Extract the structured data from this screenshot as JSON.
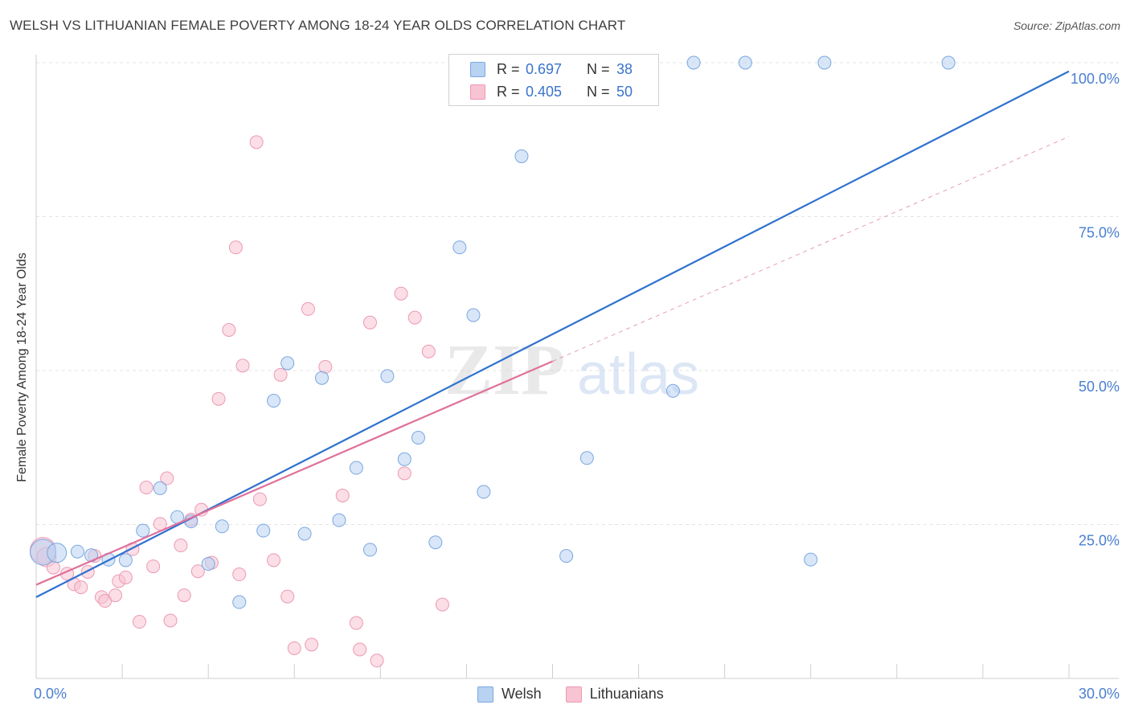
{
  "title": "WELSH VS LITHUANIAN FEMALE POVERTY AMONG 18-24 YEAR OLDS CORRELATION CHART",
  "source": "Source: ZipAtlas.com",
  "watermark": {
    "zip": "ZIP",
    "atlas": "atlas"
  },
  "colors": {
    "welsh_fill": "#b8d2f2",
    "welsh_stroke": "#7aa7e0",
    "welsh_line": "#2f72cf",
    "lith_fill": "#f8c3d2",
    "lith_stroke": "#ec9ab3",
    "lith_line": "#e0709a",
    "axis_text": "#4a7fd0",
    "grid": "#e3e3e3"
  },
  "legend_top": [
    {
      "r_label": "R =",
      "r_value": "0.697",
      "n_label": "N =",
      "n_value": "38"
    },
    {
      "r_label": "R =",
      "r_value": "0.405",
      "n_label": "N =",
      "n_value": "50"
    }
  ],
  "legend_bottom": [
    "Welsh",
    "Lithuanians"
  ],
  "chart_data": {
    "type": "scatter",
    "title": "WELSH VS LITHUANIAN FEMALE POVERTY AMONG 18-24 YEAR OLDS CORRELATION CHART",
    "xlabel": "",
    "ylabel": "Female Poverty Among 18-24 Year Olds",
    "xlim": [
      0,
      30
    ],
    "ylim": [
      0,
      100
    ],
    "x_tick_labels": [
      "0.0%",
      "30.0%"
    ],
    "y_tick_values": [
      25,
      50,
      75,
      100
    ],
    "y_tick_labels": [
      "25.0%",
      "50.0%",
      "75.0%",
      "100.0%"
    ],
    "grid": true,
    "legend_position": "top-center",
    "series": [
      {
        "name": "Welsh",
        "r": 0.697,
        "n": 38,
        "trend": {
          "x": [
            0,
            30
          ],
          "y": [
            13.2,
            98.6
          ],
          "style": "solid"
        },
        "points": [
          [
            0.2,
            20.5,
            2
          ],
          [
            0.6,
            20.4,
            1
          ],
          [
            1.2,
            20.6,
            0
          ],
          [
            1.6,
            20.0,
            0
          ],
          [
            2.1,
            19.3,
            0
          ],
          [
            2.6,
            19.2,
            0
          ],
          [
            3.1,
            24.0,
            0
          ],
          [
            3.6,
            30.9,
            0
          ],
          [
            4.1,
            26.2,
            0
          ],
          [
            4.5,
            25.5,
            0
          ],
          [
            5.0,
            18.6,
            0
          ],
          [
            5.4,
            24.7,
            0
          ],
          [
            5.9,
            12.4,
            0
          ],
          [
            6.6,
            24.0,
            0
          ],
          [
            6.9,
            45.1,
            0
          ],
          [
            7.3,
            51.2,
            0
          ],
          [
            7.8,
            23.5,
            0
          ],
          [
            8.3,
            48.8,
            0
          ],
          [
            8.8,
            25.7,
            0
          ],
          [
            9.3,
            34.2,
            0
          ],
          [
            9.7,
            20.9,
            0
          ],
          [
            10.2,
            49.1,
            0
          ],
          [
            10.7,
            35.6,
            0
          ],
          [
            11.1,
            39.1,
            0
          ],
          [
            11.6,
            22.1,
            0
          ],
          [
            12.3,
            70.0,
            0
          ],
          [
            12.7,
            59.0,
            0
          ],
          [
            13.0,
            30.3,
            0
          ],
          [
            14.1,
            84.8,
            0
          ],
          [
            14.8,
            100.0,
            0
          ],
          [
            15.4,
            19.9,
            0
          ],
          [
            16.0,
            35.8,
            0
          ],
          [
            18.5,
            46.7,
            0
          ],
          [
            19.1,
            100.0,
            0
          ],
          [
            20.6,
            100.0,
            0
          ],
          [
            22.5,
            19.3,
            0
          ],
          [
            22.9,
            100.0,
            0
          ],
          [
            26.5,
            100.0,
            0
          ]
        ]
      },
      {
        "name": "Lithuanians",
        "r": 0.405,
        "n": 50,
        "trend": {
          "x": [
            0,
            15
          ],
          "y": [
            15.2,
            51.5
          ],
          "style": "solid",
          "extended": {
            "x": [
              15,
              30
            ],
            "y": [
              51.5,
              88.0
            ],
            "style": "dashed"
          }
        },
        "points": [
          [
            0.2,
            20.8,
            2
          ],
          [
            0.3,
            19.7,
            1
          ],
          [
            0.5,
            18.0,
            0
          ],
          [
            0.9,
            17.0,
            0
          ],
          [
            1.1,
            15.3,
            0
          ],
          [
            1.3,
            14.8,
            0
          ],
          [
            1.5,
            17.3,
            0
          ],
          [
            1.7,
            19.9,
            0
          ],
          [
            1.9,
            13.2,
            0
          ],
          [
            2.0,
            12.6,
            0
          ],
          [
            2.3,
            13.5,
            0
          ],
          [
            2.4,
            15.8,
            0
          ],
          [
            2.6,
            16.4,
            0
          ],
          [
            2.8,
            21.0,
            0
          ],
          [
            3.0,
            9.2,
            0
          ],
          [
            3.2,
            31.0,
            0
          ],
          [
            3.4,
            18.2,
            0
          ],
          [
            3.6,
            25.1,
            0
          ],
          [
            3.8,
            32.5,
            0
          ],
          [
            3.9,
            9.4,
            0
          ],
          [
            4.2,
            21.6,
            0
          ],
          [
            4.3,
            13.5,
            0
          ],
          [
            4.5,
            25.8,
            0
          ],
          [
            4.7,
            17.4,
            0
          ],
          [
            4.8,
            27.4,
            0
          ],
          [
            5.1,
            18.8,
            0
          ],
          [
            5.3,
            45.4,
            0
          ],
          [
            5.6,
            56.6,
            0
          ],
          [
            5.8,
            70.0,
            0
          ],
          [
            5.9,
            16.9,
            0
          ],
          [
            6.0,
            50.8,
            0
          ],
          [
            6.4,
            87.1,
            0
          ],
          [
            6.5,
            29.1,
            0
          ],
          [
            6.9,
            19.2,
            0
          ],
          [
            7.1,
            49.3,
            0
          ],
          [
            7.3,
            13.3,
            0
          ],
          [
            7.5,
            4.9,
            0
          ],
          [
            7.9,
            60.0,
            0
          ],
          [
            8.0,
            5.5,
            0
          ],
          [
            8.4,
            50.6,
            0
          ],
          [
            8.9,
            29.7,
            0
          ],
          [
            9.3,
            9.0,
            0
          ],
          [
            9.4,
            4.7,
            0
          ],
          [
            9.7,
            57.8,
            0
          ],
          [
            9.9,
            2.9,
            0
          ],
          [
            10.6,
            62.5,
            0
          ],
          [
            10.7,
            33.3,
            0
          ],
          [
            11.0,
            58.6,
            0
          ],
          [
            11.4,
            53.1,
            0
          ],
          [
            11.8,
            12.0,
            0
          ]
        ]
      }
    ]
  }
}
